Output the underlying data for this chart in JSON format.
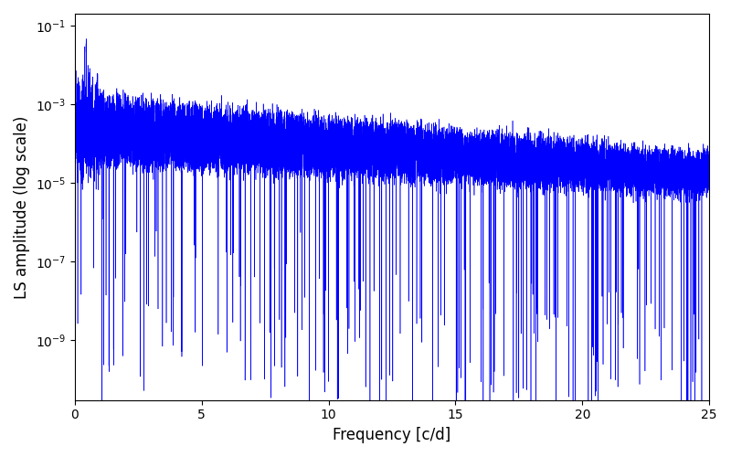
{
  "title": "",
  "xlabel": "Frequency [c/d]",
  "ylabel": "LS amplitude (log scale)",
  "xlim": [
    0,
    25
  ],
  "ylim": [
    3e-11,
    0.2
  ],
  "line_color": "#0000ff",
  "line_width": 0.4,
  "background_color": "#ffffff",
  "freq_max": 25.0,
  "n_points": 12000,
  "seed": 7,
  "peak_freq": 0.45,
  "peak_amplitude": 0.07,
  "upper_envelope_at_0": 0.002,
  "upper_envelope_at_25": 5e-05,
  "lower_envelope_at_0": 3e-05,
  "lower_envelope_at_25": 5e-06,
  "n_deep_dips": 200,
  "yticks": [
    1e-09,
    1e-07,
    1e-05,
    0.001,
    0.1
  ],
  "xticks": [
    0,
    5,
    10,
    15,
    20,
    25
  ],
  "figsize": [
    8.0,
    5.0
  ],
  "dpi": 100
}
